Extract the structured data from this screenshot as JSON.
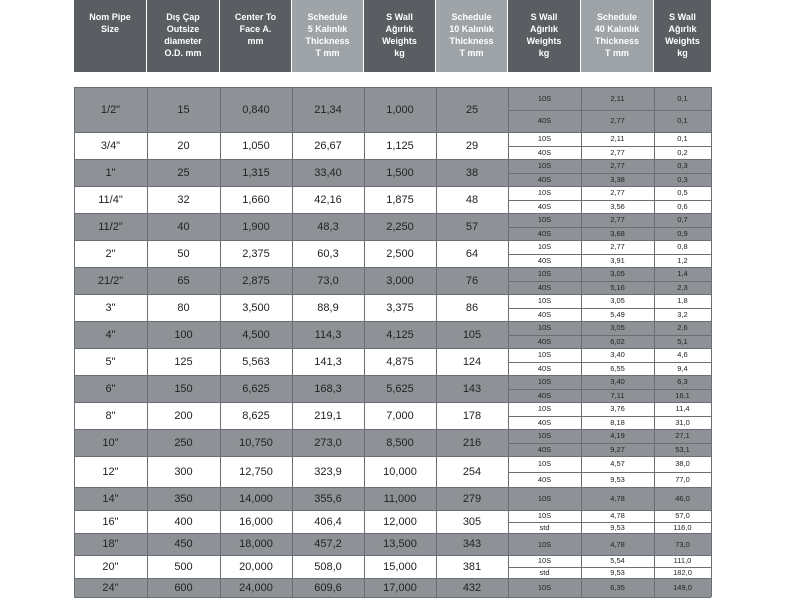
{
  "header": {
    "nom_pipe": "Nom Pipe\nSize",
    "od": "Dış Çap\nOutsize\ndiameter\nO.D. mm",
    "center": "Center To\nFace A.\nmm",
    "sch5": "Schedule\n5 Kalınlık\nThickness\nT mm",
    "wall_kg1": "S Wall\nAğırlık\nWeights\nkg",
    "sch10": "Schedule\n10 Kalınlık\nThickness\nT mm",
    "wall_kg2": "S Wall\nAğırlık\nWeights\nkg",
    "sch40": "Schedule\n40 Kalınlık\nThickness\nT mm",
    "wall_kg3": "S Wall\nAğırlık\nWeights\nkg"
  },
  "rows": [
    {
      "size": "1/2\"",
      "od": "15",
      "center": "0,840",
      "sch5": "21,34",
      "wall": "1,000",
      "sch10": "25",
      "subs": [
        {
          "sch": "10S",
          "t": "2,11",
          "kg": "0,1"
        },
        {
          "sch": "40S",
          "t": "2,77",
          "kg": "0,1"
        }
      ]
    },
    {
      "size": "3/4\"",
      "od": "20",
      "center": "1,050",
      "sch5": "26,67",
      "wall": "1,125",
      "sch10": "29",
      "subs": [
        {
          "sch": "10S",
          "t": "2,11",
          "kg": "0,1"
        },
        {
          "sch": "40S",
          "t": "2,77",
          "kg": "0,2"
        }
      ]
    },
    {
      "size": "1\"",
      "od": "25",
      "center": "1,315",
      "sch5": "33,40",
      "wall": "1,500",
      "sch10": "38",
      "subs": [
        {
          "sch": "10S",
          "t": "2,77",
          "kg": "0,3"
        },
        {
          "sch": "40S",
          "t": "3,38",
          "kg": "0,3"
        }
      ]
    },
    {
      "size": "11/4\"",
      "od": "32",
      "center": "1,660",
      "sch5": "42,16",
      "wall": "1,875",
      "sch10": "48",
      "subs": [
        {
          "sch": "10S",
          "t": "2,77",
          "kg": "0,5"
        },
        {
          "sch": "40S",
          "t": "3,56",
          "kg": "0,6"
        }
      ]
    },
    {
      "size": "11/2\"",
      "od": "40",
      "center": "1,900",
      "sch5": "48,3",
      "wall": "2,250",
      "sch10": "57",
      "subs": [
        {
          "sch": "10S",
          "t": "2,77",
          "kg": "0,7"
        },
        {
          "sch": "40S",
          "t": "3,68",
          "kg": "0,9"
        }
      ]
    },
    {
      "size": "2\"",
      "od": "50",
      "center": "2,375",
      "sch5": "60,3",
      "wall": "2,500",
      "sch10": "64",
      "subs": [
        {
          "sch": "10S",
          "t": "2,77",
          "kg": "0,8"
        },
        {
          "sch": "40S",
          "t": "3,91",
          "kg": "1,2"
        }
      ]
    },
    {
      "size": "21/2\"",
      "od": "65",
      "center": "2,875",
      "sch5": "73,0",
      "wall": "3,000",
      "sch10": "76",
      "subs": [
        {
          "sch": "10S",
          "t": "3,05",
          "kg": "1,4"
        },
        {
          "sch": "40S",
          "t": "5,16",
          "kg": "2,3"
        }
      ]
    },
    {
      "size": "3\"",
      "od": "80",
      "center": "3,500",
      "sch5": "88,9",
      "wall": "3,375",
      "sch10": "86",
      "subs": [
        {
          "sch": "10S",
          "t": "3,05",
          "kg": "1,8"
        },
        {
          "sch": "40S",
          "t": "5,49",
          "kg": "3,2"
        }
      ]
    },
    {
      "size": "4\"",
      "od": "100",
      "center": "4,500",
      "sch5": "114,3",
      "wall": "4,125",
      "sch10": "105",
      "subs": [
        {
          "sch": "10S",
          "t": "3,05",
          "kg": "2,6"
        },
        {
          "sch": "40S",
          "t": "6,02",
          "kg": "5,1"
        }
      ]
    },
    {
      "size": "5\"",
      "od": "125",
      "center": "5,563",
      "sch5": "141,3",
      "wall": "4,875",
      "sch10": "124",
      "subs": [
        {
          "sch": "10S",
          "t": "3,40",
          "kg": "4,6"
        },
        {
          "sch": "40S",
          "t": "6,55",
          "kg": "9,4"
        }
      ]
    },
    {
      "size": "6\"",
      "od": "150",
      "center": "6,625",
      "sch5": "168,3",
      "wall": "5,625",
      "sch10": "143",
      "subs": [
        {
          "sch": "10S",
          "t": "3,40",
          "kg": "6,3"
        },
        {
          "sch": "40S",
          "t": "7,11",
          "kg": "16,1"
        }
      ]
    },
    {
      "size": "8\"",
      "od": "200",
      "center": "8,625",
      "sch5": "219,1",
      "wall": "7,000",
      "sch10": "178",
      "subs": [
        {
          "sch": "10S",
          "t": "3,76",
          "kg": "11,4"
        },
        {
          "sch": "40S",
          "t": "8,18",
          "kg": "31,0"
        }
      ]
    },
    {
      "size": "10\"",
      "od": "250",
      "center": "10,750",
      "sch5": "273,0",
      "wall": "8,500",
      "sch10": "216",
      "subs": [
        {
          "sch": "10S",
          "t": "4,19",
          "kg": "27,1"
        },
        {
          "sch": "40S",
          "t": "9,27",
          "kg": "53,1"
        }
      ]
    },
    {
      "size": "12\"",
      "od": "300",
      "center": "12,750",
      "sch5": "323,9",
      "wall": "10,000",
      "sch10": "254",
      "subs": [
        {
          "sch": "10S",
          "t": "4,57",
          "kg": "38,0"
        },
        {
          "sch": "40S",
          "t": "9,53",
          "kg": "77,0"
        }
      ]
    },
    {
      "size": "14\"",
      "od": "350",
      "center": "14,000",
      "sch5": "355,6",
      "wall": "11,000",
      "sch10": "279",
      "subs": [
        {
          "sch": "10S",
          "t": "4,78",
          "kg": "46,0"
        }
      ]
    },
    {
      "size": "16\"",
      "od": "400",
      "center": "16,000",
      "sch5": "406,4",
      "wall": "12,000",
      "sch10": "305",
      "subs": [
        {
          "sch": "10S",
          "t": "4,78",
          "kg": "57,0"
        },
        {
          "sch": "std",
          "t": "9,53",
          "kg": "116,0"
        }
      ]
    },
    {
      "size": "18\"",
      "od": "450",
      "center": "18,000",
      "sch5": "457,2",
      "wall": "13,500",
      "sch10": "343",
      "subs": [
        {
          "sch": "10S",
          "t": "4,78",
          "kg": "73,0"
        }
      ]
    },
    {
      "size": "20\"",
      "od": "500",
      "center": "20,000",
      "sch5": "508,0",
      "wall": "15,000",
      "sch10": "381",
      "subs": [
        {
          "sch": "10S",
          "t": "5,54",
          "kg": "111,0"
        },
        {
          "sch": "std",
          "t": "9,53",
          "kg": "182,0"
        }
      ]
    },
    {
      "size": "24\"",
      "od": "600",
      "center": "24,000",
      "sch5": "609,6",
      "wall": "17,000",
      "sch10": "432",
      "subs": [
        {
          "sch": "10S",
          "t": "6,35",
          "kg": "149,0"
        }
      ]
    }
  ]
}
